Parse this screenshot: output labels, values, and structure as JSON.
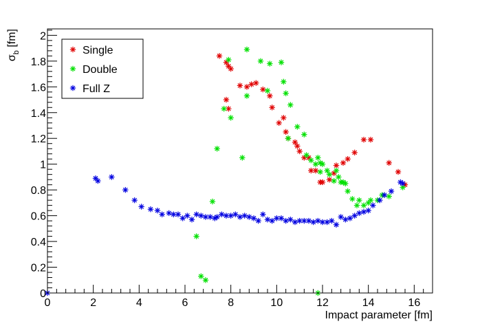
{
  "chart_data": {
    "type": "scatter",
    "xlabel": "Impact parameter [fm]",
    "ylabel_main": "σ",
    "ylabel_sub": "b",
    "ylabel_unit": " [fm]",
    "xlim": [
      0,
      16.8
    ],
    "ylim": [
      0,
      2.05
    ],
    "xticks": [
      0,
      2,
      4,
      6,
      8,
      10,
      12,
      14,
      16
    ],
    "yticks": [
      0,
      0.2,
      0.4,
      0.6,
      0.8,
      1,
      1.2,
      1.4,
      1.6,
      1.8,
      2
    ],
    "xtick_labels": [
      "0",
      "2",
      "4",
      "6",
      "8",
      "10",
      "12",
      "14",
      "16"
    ],
    "ytick_labels": [
      "0",
      "0.2",
      "0.4",
      "0.6",
      "0.8",
      "1",
      "1.2",
      "1.4",
      "1.6",
      "1.8",
      "2"
    ],
    "legend_position": "top-left",
    "series": [
      {
        "name": "Single",
        "color": "#e00000",
        "points": [
          [
            7.5,
            1.84
          ],
          [
            7.8,
            1.79
          ],
          [
            7.9,
            1.76
          ],
          [
            8.0,
            1.74
          ],
          [
            7.8,
            1.5
          ],
          [
            7.9,
            1.43
          ],
          [
            8.4,
            1.61
          ],
          [
            8.7,
            1.6
          ],
          [
            8.9,
            1.62
          ],
          [
            9.1,
            1.63
          ],
          [
            9.4,
            1.58
          ],
          [
            9.7,
            1.53
          ],
          [
            9.8,
            1.44
          ],
          [
            10.1,
            1.32
          ],
          [
            10.3,
            1.36
          ],
          [
            10.4,
            1.25
          ],
          [
            10.5,
            1.2
          ],
          [
            10.8,
            1.17
          ],
          [
            10.9,
            1.14
          ],
          [
            11.0,
            1.1
          ],
          [
            11.2,
            1.05
          ],
          [
            11.4,
            1.05
          ],
          [
            11.5,
            0.95
          ],
          [
            11.7,
            0.95
          ],
          [
            11.9,
            0.86
          ],
          [
            12.0,
            0.86
          ],
          [
            12.3,
            0.88
          ],
          [
            12.5,
            0.93
          ],
          [
            12.6,
            0.99
          ],
          [
            12.9,
            1.01
          ],
          [
            13.1,
            1.04
          ],
          [
            13.4,
            1.09
          ],
          [
            13.8,
            1.19
          ],
          [
            14.1,
            1.19
          ],
          [
            14.9,
            1.01
          ],
          [
            15.3,
            0.94
          ],
          [
            15.6,
            0.84
          ]
        ]
      },
      {
        "name": "Double",
        "color": "#00e000",
        "points": [
          [
            6.5,
            0.44
          ],
          [
            6.7,
            0.13
          ],
          [
            6.9,
            0.1
          ],
          [
            7.2,
            0.71
          ],
          [
            7.4,
            1.12
          ],
          [
            7.7,
            1.43
          ],
          [
            7.9,
            1.81
          ],
          [
            8.0,
            1.36
          ],
          [
            8.5,
            1.05
          ],
          [
            8.7,
            1.53
          ],
          [
            8.7,
            1.89
          ],
          [
            9.3,
            1.8
          ],
          [
            9.7,
            1.78
          ],
          [
            9.6,
            1.57
          ],
          [
            10.2,
            1.79
          ],
          [
            10.3,
            1.64
          ],
          [
            10.4,
            1.55
          ],
          [
            10.5,
            1.2
          ],
          [
            10.6,
            1.46
          ],
          [
            10.9,
            1.29
          ],
          [
            11.2,
            1.23
          ],
          [
            11.3,
            1.07
          ],
          [
            11.5,
            1.03
          ],
          [
            11.7,
            1.0
          ],
          [
            11.8,
            1.05
          ],
          [
            11.9,
            1.01
          ],
          [
            11.9,
            0.94
          ],
          [
            12.0,
            1.0
          ],
          [
            12.2,
            0.95
          ],
          [
            12.3,
            0.92
          ],
          [
            12.5,
            0.87
          ],
          [
            12.6,
            0.95
          ],
          [
            12.7,
            0.9
          ],
          [
            12.8,
            0.86
          ],
          [
            12.9,
            0.86
          ],
          [
            13.0,
            0.85
          ],
          [
            13.1,
            0.79
          ],
          [
            13.3,
            0.73
          ],
          [
            13.5,
            0.68
          ],
          [
            13.6,
            0.72
          ],
          [
            13.8,
            0.68
          ],
          [
            14.0,
            0.7
          ],
          [
            14.1,
            0.72
          ],
          [
            14.4,
            0.72
          ],
          [
            14.6,
            0.76
          ],
          [
            14.9,
            0.75
          ],
          [
            15.5,
            0.82
          ],
          [
            11.8,
            0.0
          ]
        ]
      },
      {
        "name": "Full Z",
        "color": "#0000e0",
        "points": [
          [
            0.0,
            0.0
          ],
          [
            2.1,
            0.89
          ],
          [
            2.2,
            0.87
          ],
          [
            2.8,
            0.9
          ],
          [
            3.4,
            0.8
          ],
          [
            3.8,
            0.72
          ],
          [
            4.1,
            0.67
          ],
          [
            4.5,
            0.65
          ],
          [
            4.8,
            0.64
          ],
          [
            5.0,
            0.61
          ],
          [
            5.3,
            0.62
          ],
          [
            5.5,
            0.61
          ],
          [
            5.7,
            0.61
          ],
          [
            5.9,
            0.58
          ],
          [
            6.1,
            0.6
          ],
          [
            6.3,
            0.57
          ],
          [
            6.5,
            0.61
          ],
          [
            6.7,
            0.6
          ],
          [
            6.9,
            0.59
          ],
          [
            7.1,
            0.59
          ],
          [
            7.3,
            0.58
          ],
          [
            7.4,
            0.59
          ],
          [
            7.6,
            0.61
          ],
          [
            7.8,
            0.6
          ],
          [
            8.0,
            0.6
          ],
          [
            8.2,
            0.61
          ],
          [
            8.4,
            0.59
          ],
          [
            8.6,
            0.6
          ],
          [
            8.8,
            0.59
          ],
          [
            9.0,
            0.58
          ],
          [
            9.2,
            0.56
          ],
          [
            9.4,
            0.61
          ],
          [
            9.6,
            0.57
          ],
          [
            9.8,
            0.56
          ],
          [
            10.0,
            0.58
          ],
          [
            10.2,
            0.58
          ],
          [
            10.4,
            0.56
          ],
          [
            10.6,
            0.57
          ],
          [
            10.8,
            0.55
          ],
          [
            11.0,
            0.56
          ],
          [
            11.2,
            0.56
          ],
          [
            11.4,
            0.56
          ],
          [
            11.6,
            0.55
          ],
          [
            11.8,
            0.56
          ],
          [
            12.0,
            0.55
          ],
          [
            12.2,
            0.55
          ],
          [
            12.4,
            0.56
          ],
          [
            12.6,
            0.53
          ],
          [
            12.8,
            0.59
          ],
          [
            13.0,
            0.57
          ],
          [
            13.2,
            0.58
          ],
          [
            13.4,
            0.6
          ],
          [
            13.6,
            0.62
          ],
          [
            13.8,
            0.63
          ],
          [
            14.0,
            0.64
          ],
          [
            14.2,
            0.68
          ],
          [
            14.5,
            0.72
          ],
          [
            14.7,
            0.76
          ],
          [
            15.0,
            0.79
          ],
          [
            15.4,
            0.86
          ],
          [
            15.5,
            0.85
          ]
        ]
      }
    ]
  }
}
